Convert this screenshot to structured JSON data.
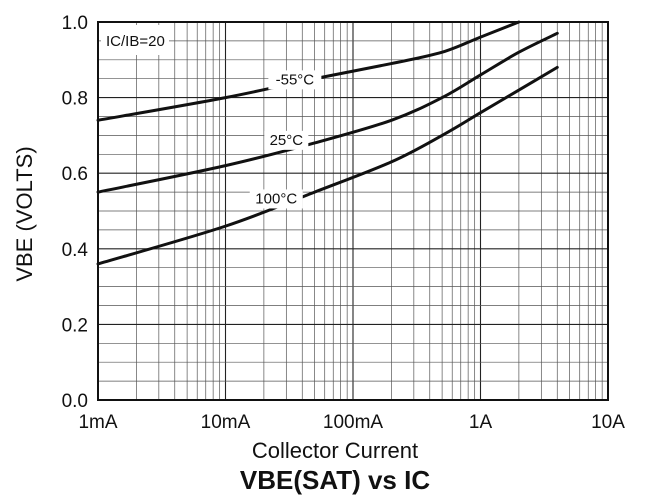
{
  "chart_data": {
    "type": "line",
    "title": "VBE(SAT) vs IC",
    "xlabel": "Collector Current",
    "ylabel": "VBE (VOLTS)",
    "x_scale": "log",
    "xlim": [
      0.001,
      10
    ],
    "ylim": [
      0.0,
      1.0
    ],
    "x_tick_values": [
      0.001,
      0.01,
      0.1,
      1,
      10
    ],
    "x_tick_labels": [
      "1mA",
      "10mA",
      "100mA",
      "1A",
      "10A"
    ],
    "y_tick_values": [
      0.0,
      0.2,
      0.4,
      0.6,
      0.8,
      1.0
    ],
    "y_tick_labels": [
      "0.0",
      "0.2",
      "0.4",
      "0.6",
      "0.8",
      "1.0"
    ],
    "grid": true,
    "annotation": "IC/IB=20",
    "series": [
      {
        "name": "-55°C",
        "x": [
          0.001,
          0.01,
          0.05,
          0.2,
          0.5,
          1,
          2
        ],
        "y": [
          0.74,
          0.8,
          0.85,
          0.89,
          0.92,
          0.96,
          1.0
        ]
      },
      {
        "name": "25°C",
        "x": [
          0.001,
          0.01,
          0.05,
          0.2,
          0.5,
          1,
          2,
          4
        ],
        "y": [
          0.55,
          0.62,
          0.68,
          0.74,
          0.8,
          0.86,
          0.92,
          0.97
        ]
      },
      {
        "name": "100°C",
        "x": [
          0.001,
          0.01,
          0.05,
          0.2,
          0.5,
          1,
          2,
          4
        ],
        "y": [
          0.36,
          0.46,
          0.55,
          0.63,
          0.7,
          0.76,
          0.82,
          0.88
        ]
      }
    ],
    "series_label_positions": [
      {
        "x": 0.035,
        "y": 0.835
      },
      {
        "x": 0.03,
        "y": 0.675
      },
      {
        "x": 0.025,
        "y": 0.52
      }
    ]
  }
}
